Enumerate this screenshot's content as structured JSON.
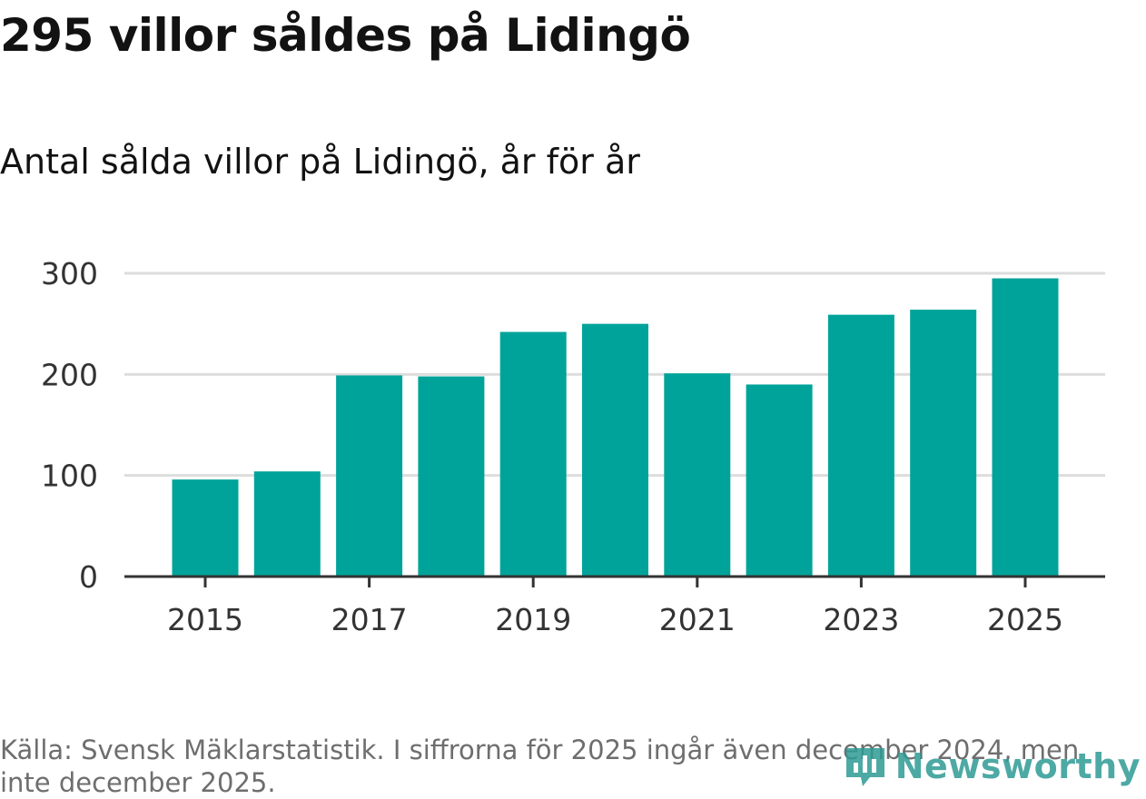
{
  "header": {
    "title": "295 villor såldes på Lidingö",
    "subtitle": "Antal sålda villor på Lidingö, år för år"
  },
  "chart_data": {
    "type": "bar",
    "categories": [
      "2015",
      "2016",
      "2017",
      "2018",
      "2019",
      "2020",
      "2021",
      "2022",
      "2023",
      "2024",
      "2025"
    ],
    "values": [
      96,
      104,
      199,
      198,
      242,
      250,
      201,
      190,
      259,
      264,
      295
    ],
    "xtick_labels": [
      "2015",
      "2017",
      "2019",
      "2021",
      "2023",
      "2025"
    ],
    "yticks": [
      0,
      100,
      200,
      300
    ],
    "ytick_labels": [
      "0",
      "100",
      "200",
      "300"
    ],
    "ylim": [
      0,
      300
    ],
    "xlabel": "",
    "ylabel": "",
    "grid": true,
    "bar_color": "#00a39a",
    "grid_color": "#dddddd",
    "axis_color": "#333333"
  },
  "footer": {
    "source": "Källa: Svensk Mäklarstatistik. I siffrorna för 2025 ingår även december 2024, men inte december 2025.",
    "brand": "Newsworthy"
  }
}
